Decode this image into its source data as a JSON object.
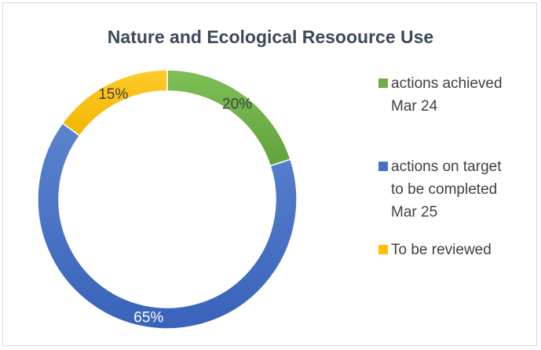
{
  "chart_data": {
    "type": "pie",
    "variant": "doughnut",
    "title": "Nature and Ecological Resoource Use",
    "slices": [
      {
        "label": "actions achieved Mar 24",
        "value": 20,
        "data_label": "20%",
        "color": "#70ad47"
      },
      {
        "label": "actions on target to be completed Mar 25",
        "value": 65,
        "data_label": "65%",
        "color": "#4472c4"
      },
      {
        "label": "To be reviewed",
        "value": 15,
        "data_label": "15%",
        "color": "#ffc000"
      }
    ],
    "legend": {
      "position": "right",
      "entries": [
        {
          "label": "actions achieved Mar 24",
          "color": "#70ad47"
        },
        {
          "label": "actions on target to be completed Mar 25",
          "color": "#4472c4"
        },
        {
          "label": "To be reviewed",
          "color": "#ffc000"
        }
      ]
    },
    "start_angle_deg": 0,
    "direction": "clockwise"
  }
}
